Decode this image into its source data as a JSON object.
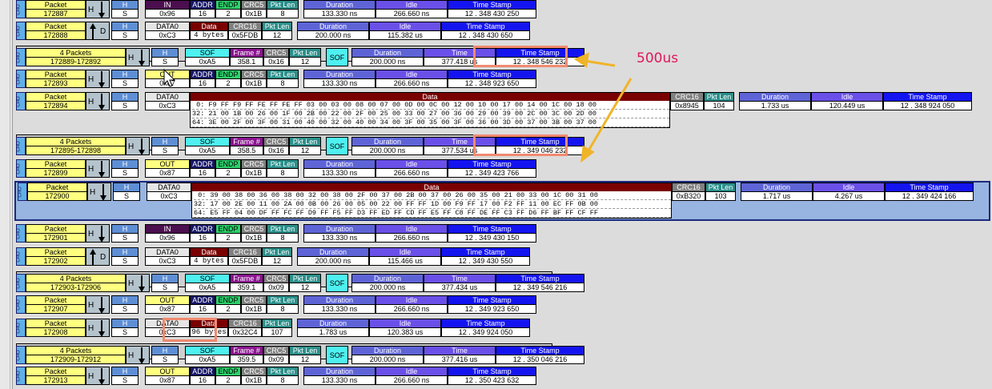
{
  "labels": {
    "packet": "Packet",
    "h": "H",
    "s": "S",
    "d": "D",
    "addr": "ADDR",
    "endp": "ENDP",
    "crc5": "CRC5",
    "crc16": "CRC16",
    "pkt_len": "Pkt Len",
    "frame": "Frame #",
    "data": "Data",
    "duration": "Duration",
    "idle": "Idle",
    "time": "Time",
    "time_stamp": "Time Stamp",
    "sof": "SOF",
    "cho": "CHO"
  },
  "annotation": {
    "label": "500us",
    "color": "#e0185a",
    "box_color": "#f08a70",
    "arrow_color": "#f0b428"
  },
  "rows": [
    {
      "type": "IN",
      "packet": "172887",
      "pid": "IN",
      "pid_val": "0x96",
      "addr": "16",
      "endp": "2",
      "crc5": "0x1B",
      "pkt_len": "8",
      "duration": "133.330 ns",
      "idle": "266.660 ns",
      "ts": "12 . 348 430 250"
    },
    {
      "type": "DATA",
      "packet": "172888",
      "pid": "DATA0",
      "pid_val": "0xC3",
      "data": "4 bytes",
      "crc16": "0x5FDB",
      "pkt_len": "12",
      "duration": "200.000 ns",
      "idle": "115.382 us",
      "ts": "12 . 348 430 650"
    },
    {
      "type": "SOF",
      "packet": "4 Packets",
      "range": "172889-172892",
      "pid": "SOF",
      "pid_val": "0xA5",
      "frame": "358.1",
      "crc5": "0x16",
      "pkt_len": "12",
      "duration": "200.000 ns",
      "time": "377.418 us",
      "ts": "12 . 348 546 232"
    },
    {
      "type": "OUT",
      "packet": "172893",
      "pid": "OUT",
      "pid_val": "0x87",
      "addr": "16",
      "endp": "2",
      "crc5": "0x1B",
      "pkt_len": "8",
      "duration": "133.330 ns",
      "idle": "266.660 ns",
      "ts": "12 . 348 923 650"
    },
    {
      "type": "DATAX",
      "packet": "172894",
      "pid": "DATA0",
      "pid_val": "0xC3",
      "crc16": "0x8945",
      "pkt_len": "104",
      "duration": "1.733 us",
      "idle": "120.449 us",
      "ts": "12 . 348 924 050",
      "hex": [
        " 0: F9 FF F9 FF FE FF FE FF 03 00 03 00 08 00 07 00 0D 00 0C 00 12 00 10 00 17 00 14 00 1C 00 18 00",
        "32: 21 00 1B 00 26 00 1F 00 2B 00 22 00 2F 00 25 00 33 00 27 00 36 00 29 00 39 00 2C 00 3C 00 2D 00",
        "64: 3E 00 2F 00 3F 00 31 00 40 00 32 00 40 00 34 00 3F 00 35 00 3F 00 36 00 3D 00 37 00 3B 00 37 00"
      ]
    },
    {
      "type": "SOF",
      "packet": "4 Packets",
      "range": "172895-172898",
      "pid": "SOF",
      "pid_val": "0xA5",
      "frame": "358.5",
      "crc5": "0x16",
      "pkt_len": "12",
      "duration": "200.000 ns",
      "time": "377.534 us",
      "ts": "12 . 349 046 232"
    },
    {
      "type": "OUT",
      "packet": "172899",
      "pid": "OUT",
      "pid_val": "0x87",
      "addr": "16",
      "endp": "2",
      "crc5": "0x1B",
      "pkt_len": "8",
      "duration": "133.330 ns",
      "idle": "266.660 ns",
      "ts": "12 . 349 423 766"
    },
    {
      "type": "DATAX",
      "packet": "172900",
      "pid": "DATA0",
      "pid_val": "0xC3",
      "crc16": "0xB320",
      "pkt_len": "103",
      "duration": "1.717 us",
      "idle": "4.267 us",
      "ts": "12 . 349 424 166",
      "hex": [
        " 0: 39 00 38 00 36 00 38 00 32 00 38 00 2F 00 37 00 2B 00 37 00 26 00 35 00 21 00 33 00 1C 00 31 00",
        "32: 17 00 2E 00 11 00 2A 00 0B 00 26 00 05 00 22 00 FF FF 1D 00 F9 FF 17 00 F2 FF 11 00 EC FF 0B 00",
        "64: E5 FF 04 00 DF FF FC FF D9 FF F5 FF D3 FF ED FF CD FF E5 FF C8 FF DE FF C3 FF D6 FF BF FF CF FF"
      ]
    },
    {
      "type": "IN",
      "packet": "172901",
      "pid": "IN",
      "pid_val": "0x96",
      "addr": "16",
      "endp": "2",
      "crc5": "0x1B",
      "pkt_len": "8",
      "duration": "133.330 ns",
      "idle": "266.660 ns",
      "ts": "12 . 349 430 150"
    },
    {
      "type": "DATA",
      "packet": "172902",
      "pid": "DATA0",
      "pid_val": "0xC3",
      "data": "4 bytes",
      "crc16": "0x5FDB",
      "pkt_len": "12",
      "duration": "200.000 ns",
      "idle": "115.466 us",
      "ts": "12 . 349 430 550"
    },
    {
      "type": "SOF",
      "packet": "4 Packets",
      "range": "172903-172906",
      "pid": "SOF",
      "pid_val": "0xA5",
      "frame": "359.1",
      "crc5": "0x09",
      "pkt_len": "12",
      "duration": "200.000 ns",
      "time": "377.434 us",
      "ts": "12 . 349 546 216"
    },
    {
      "type": "OUT",
      "packet": "172907",
      "pid": "OUT",
      "pid_val": "0x87",
      "addr": "16",
      "endp": "2",
      "crc5": "0x1B",
      "pkt_len": "8",
      "duration": "133.330 ns",
      "idle": "266.660 ns",
      "ts": "12 . 349 923 650"
    },
    {
      "type": "DATA",
      "packet": "172908",
      "pid": "DATA0",
      "pid_val": "0xC3",
      "data": "96 bytes",
      "crc16": "0x32C4",
      "pkt_len": "107",
      "duration": "1.783 us",
      "idle": "120.383 us",
      "ts": "12 . 349 924 050"
    },
    {
      "type": "SOF",
      "packet": "4 Packets",
      "range": "172909-172912",
      "pid": "SOF",
      "pid_val": "0xA5",
      "frame": "359.5",
      "crc5": "0x09",
      "pkt_len": "12",
      "duration": "200.000 ns",
      "time": "377.416 us",
      "ts": "12 . 350 046 216"
    },
    {
      "type": "OUT",
      "packet": "172913",
      "pid": "OUT",
      "pid_val": "0x87",
      "addr": "16",
      "endp": "2",
      "crc5": "0x1B",
      "pkt_len": "8",
      "duration": "133.330 ns",
      "idle": "266.660 ns",
      "ts": "12 . 350 423 632"
    }
  ]
}
